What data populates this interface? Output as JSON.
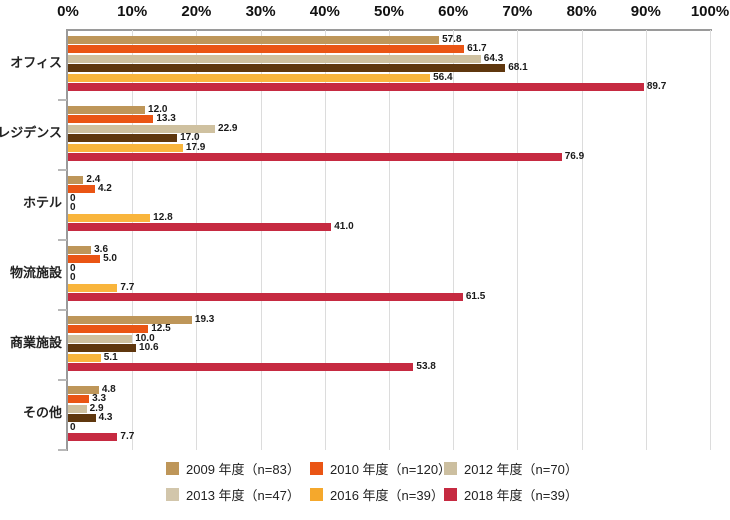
{
  "chart_data": {
    "type": "bar",
    "orientation": "horizontal",
    "title": "",
    "xlabel": "",
    "ylabel": "",
    "xlim": [
      0,
      100
    ],
    "grid": true,
    "x_axis_ticks": [
      "0%",
      "10%",
      "20%",
      "30%",
      "40%",
      "50%",
      "60%",
      "70%",
      "80%",
      "90%",
      "100%"
    ],
    "categories": [
      "オフィス",
      "レジデンス",
      "ホテル",
      "物流施設",
      "商業施設",
      "その他"
    ],
    "series": [
      {
        "name": "2009 年度（n=83）",
        "year": "2009 年度",
        "n": 83,
        "color": "#BE9659",
        "legend_color": "#BE9659",
        "values": [
          57.8,
          12.0,
          2.4,
          3.6,
          19.3,
          4.8
        ],
        "labels": [
          "57.8",
          "12.0",
          "2.4",
          "3.6",
          "19.3",
          "4.8"
        ]
      },
      {
        "name": "2010 年度（n=120）",
        "year": "2010 年度",
        "n": 120,
        "color": "#EA5514",
        "legend_color": "#EA5514",
        "values": [
          61.7,
          13.3,
          4.2,
          5.0,
          12.5,
          3.3
        ],
        "labels": [
          "61.7",
          "13.3",
          "4.2",
          "5.0",
          "12.5",
          "3.3"
        ]
      },
      {
        "name": "2012 年度（n=70）",
        "year": "2012 年度",
        "n": 70,
        "color": "#CFC1A0",
        "legend_color": "#CCBFA0",
        "values": [
          64.3,
          22.9,
          0,
          0,
          10.0,
          2.9
        ],
        "labels": [
          "64.3",
          "22.9",
          "0",
          "0",
          "10.0",
          "2.9"
        ]
      },
      {
        "name": "2013 年度（n=47）",
        "year": "2013 年度",
        "n": 47,
        "color": "#5F370E",
        "legend_color": "#D2C6AB",
        "values": [
          68.1,
          17.0,
          0,
          0,
          10.6,
          4.3
        ],
        "labels": [
          "68.1",
          "17.0",
          "0",
          "0",
          "10.6",
          "4.3"
        ]
      },
      {
        "name": "2016 年度（n=39）",
        "year": "2016 年度",
        "n": 39,
        "color": "#F9B53C",
        "legend_color": "#F5A82C",
        "values": [
          56.4,
          17.9,
          12.8,
          7.7,
          5.1,
          0
        ],
        "labels": [
          "56.4",
          "17.9",
          "12.8",
          "7.7",
          "5.1",
          "0"
        ]
      },
      {
        "name": "2018 年度（n=39）",
        "year": "2018 年度",
        "n": 39,
        "color": "#C62A41",
        "legend_color": "#C62A41",
        "values": [
          89.7,
          76.9,
          41.0,
          61.5,
          53.8,
          7.7
        ],
        "labels": [
          "89.7",
          "76.9",
          "41.0",
          "61.5",
          "53.8",
          "7.7"
        ]
      }
    ],
    "legend": {
      "position": "bottom",
      "columns": 3
    }
  },
  "colors": {
    "axis_line": "#9a9a9a",
    "gridline": "#dcdcdc",
    "tick": "#b8b8b8",
    "label_text": "#1a1a1a",
    "background": "#ffffff"
  }
}
